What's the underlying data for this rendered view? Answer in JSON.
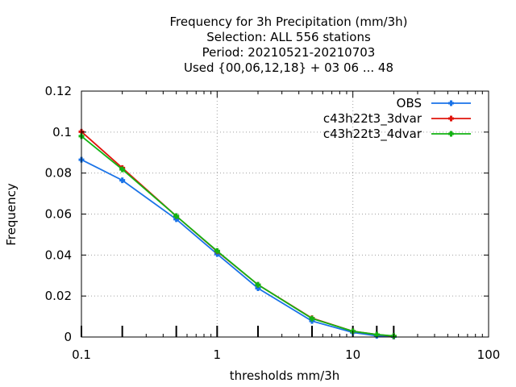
{
  "chart_data": {
    "type": "line",
    "title_lines": [
      "Frequency  for 3h Precipitation (mm/3h)",
      "Selection: ALL    556 stations",
      "Period: 20210521-20210703",
      "Used {00,06,12,18} + 03 06 ... 48"
    ],
    "xlabel": "thresholds mm/3h",
    "ylabel": "Frequency",
    "xscale": "log",
    "xlim": [
      0.1,
      100
    ],
    "ylim": [
      0,
      0.12
    ],
    "xticks": [
      0.1,
      1,
      10,
      100
    ],
    "xtick_labels": [
      "0.1",
      "1",
      "10",
      "100"
    ],
    "yticks": [
      0,
      0.02,
      0.04,
      0.06,
      0.08,
      0.1,
      0.12
    ],
    "ytick_labels": [
      "0",
      "0.02",
      "0.04",
      "0.06",
      "0.08",
      "0.1",
      "0.12"
    ],
    "threshold_markers": [
      0.1,
      0.2,
      0.5,
      1,
      2,
      5,
      10,
      15,
      20
    ],
    "grid": true,
    "legend_position": "top-right",
    "x": [
      0.1,
      0.2,
      0.5,
      1,
      2,
      5,
      10,
      15,
      20
    ],
    "series": [
      {
        "name": "OBS",
        "color": "#1a73e8",
        "values": [
          0.0865,
          0.0765,
          0.0575,
          0.0405,
          0.0238,
          0.0078,
          0.0022,
          0.0006,
          0.0002
        ]
      },
      {
        "name": "c43h22t3_3dvar",
        "color": "#e0140c",
        "values": [
          0.1002,
          0.0825,
          0.059,
          0.0418,
          0.0255,
          0.0092,
          0.0028,
          0.0012,
          0.0004
        ]
      },
      {
        "name": "c43h22t3_4dvar",
        "color": "#13b313",
        "values": [
          0.098,
          0.0818,
          0.059,
          0.042,
          0.0255,
          0.009,
          0.0028,
          0.0012,
          0.0005
        ]
      }
    ]
  }
}
